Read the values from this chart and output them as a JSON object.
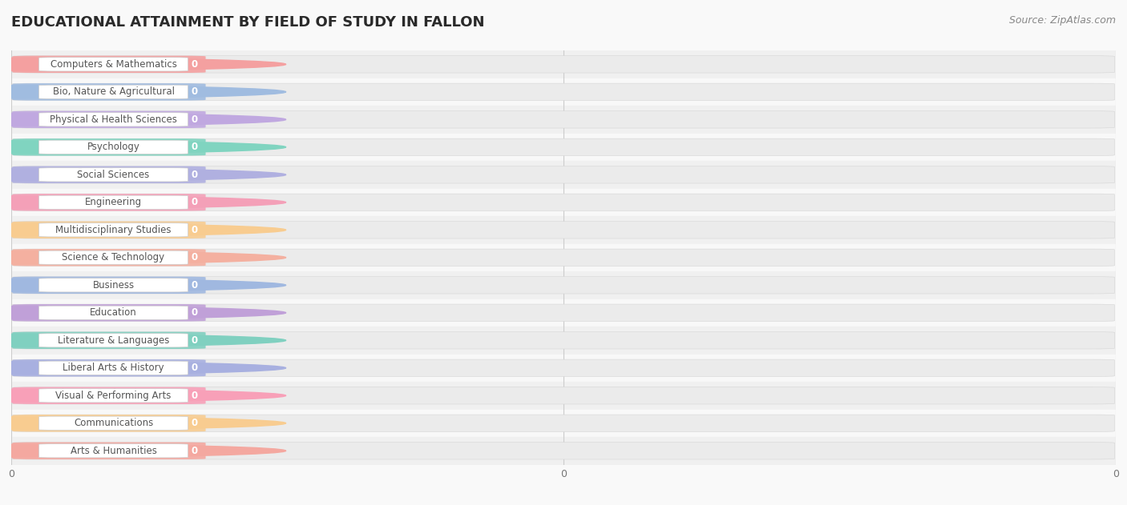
{
  "title": "EDUCATIONAL ATTAINMENT BY FIELD OF STUDY IN FALLON",
  "source": "Source: ZipAtlas.com",
  "categories": [
    "Computers & Mathematics",
    "Bio, Nature & Agricultural",
    "Physical & Health Sciences",
    "Psychology",
    "Social Sciences",
    "Engineering",
    "Multidisciplinary Studies",
    "Science & Technology",
    "Business",
    "Education",
    "Literature & Languages",
    "Liberal Arts & History",
    "Visual & Performing Arts",
    "Communications",
    "Arts & Humanities"
  ],
  "values": [
    0,
    0,
    0,
    0,
    0,
    0,
    0,
    0,
    0,
    0,
    0,
    0,
    0,
    0,
    0
  ],
  "bar_colors": [
    "#f4a0a0",
    "#a0bce0",
    "#c0a8e0",
    "#80d4c0",
    "#b0b0e0",
    "#f4a0b8",
    "#f8cc90",
    "#f4b0a0",
    "#a0b8e0",
    "#c0a0d8",
    "#80d0c0",
    "#a8b0e0",
    "#f8a0b8",
    "#f8cc90",
    "#f4a8a0"
  ],
  "row_colors": [
    "#f0f0f0",
    "#f8f8f8"
  ],
  "background_color": "#f9f9f9",
  "grid_color": "#cccccc",
  "bar_bg_color": "#ebebeb",
  "white_pill_color": "#ffffff",
  "label_text_color": "#555555",
  "value_text_color": "#ffffff",
  "xlim_max": 1.0,
  "title_fontsize": 13,
  "label_fontsize": 8.5,
  "value_fontsize": 8.5,
  "source_fontsize": 9
}
